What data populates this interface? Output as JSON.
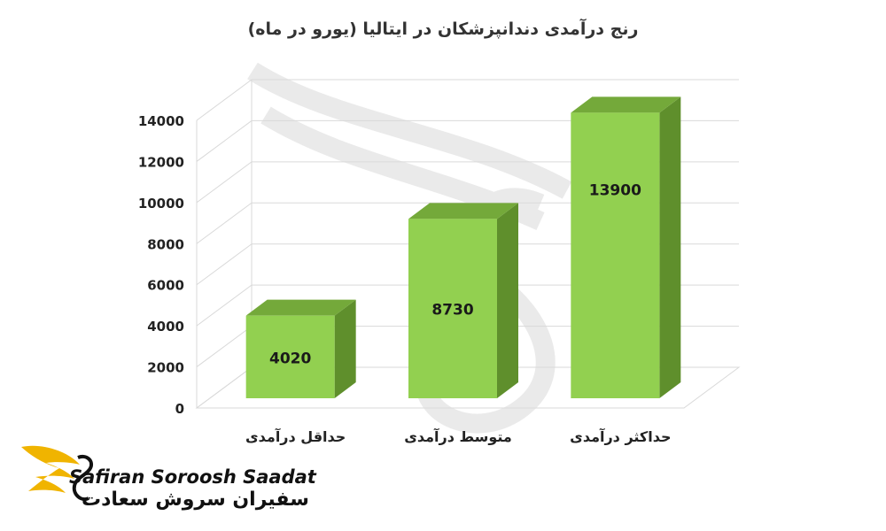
{
  "chart_data": {
    "type": "bar",
    "title": "رنج درآمدی دندانپزشکان در ایتالیا (یورو در ماه)",
    "categories": [
      "حداقل درآمدی",
      "متوسط درآمدی",
      "حداکثر درآمدی"
    ],
    "values": [
      4020,
      8730,
      13900
    ],
    "ylim": [
      0,
      14000
    ],
    "yticks": [
      0,
      2000,
      4000,
      6000,
      8000,
      10000,
      12000,
      14000
    ],
    "grid": true,
    "legend": "none",
    "bar_color": "#92d050",
    "bar_side_color": "#5f8f2c",
    "bar_top_color": "#74a93a"
  },
  "brand": {
    "name_en": "Safiran Soroosh Saadat",
    "name_fa": "سفیران سروش سعادت",
    "logo_icon": "gold-wing-bird-logo",
    "accent": "#f0b400"
  }
}
